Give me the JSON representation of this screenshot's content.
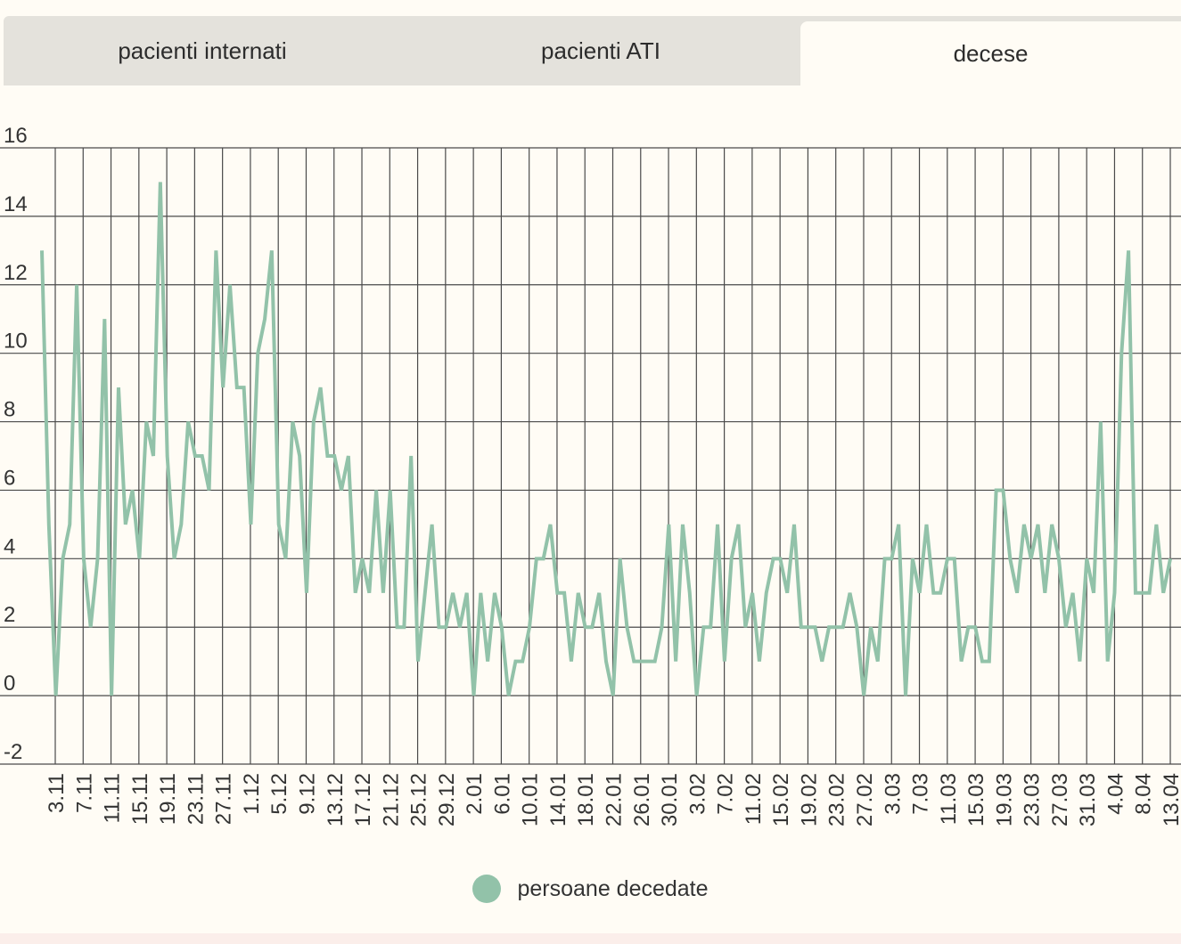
{
  "tabs": [
    {
      "label": "pacienti internati",
      "active": false
    },
    {
      "label": "pacienti ATI",
      "active": false
    },
    {
      "label": "decese",
      "active": true
    }
  ],
  "colors": {
    "series": "#92c2a9",
    "grid": "#4a4a4a",
    "background": "#fffcf5",
    "tabbar": "#e4e2dc"
  },
  "chart_data": {
    "type": "line",
    "ylim": [
      -2,
      16
    ],
    "yticks": [
      16,
      14,
      12,
      10,
      8,
      6,
      4,
      2,
      0,
      -2
    ],
    "grid": true,
    "legend_position": "bottom",
    "x_labels": [
      "3.11",
      "7.11",
      "11.11",
      "15.11",
      "19.11",
      "23.11",
      "27.11",
      "1.12",
      "5.12",
      "9.12",
      "13.12",
      "17.12",
      "21.12",
      "25.12",
      "29.12",
      "2.01",
      "6.01",
      "10.01",
      "14.01",
      "18.01",
      "22.01",
      "26.01",
      "30.01",
      "3.02",
      "7.02",
      "11.02",
      "15.02",
      "19.02",
      "23.02",
      "27.02",
      "3.03",
      "7.03",
      "11.03",
      "15.03",
      "19.03",
      "23.03",
      "27.03",
      "31.03",
      "4.04",
      "8.04",
      "13.04"
    ],
    "series": [
      {
        "name": "persoane decedate",
        "values": [
          13,
          5,
          0,
          4,
          5,
          12,
          4,
          2,
          4,
          11,
          0,
          9,
          5,
          6,
          4,
          8,
          7,
          15,
          7,
          4,
          5,
          8,
          7,
          7,
          6,
          13,
          9,
          12,
          9,
          9,
          5,
          10,
          11,
          13,
          5,
          4,
          8,
          7,
          3,
          8,
          9,
          7,
          7,
          6,
          7,
          3,
          4,
          3,
          6,
          3,
          6,
          2,
          2,
          7,
          1,
          3,
          5,
          2,
          2,
          3,
          2,
          3,
          0,
          3,
          1,
          3,
          2,
          0,
          1,
          1,
          2,
          4,
          4,
          5,
          3,
          3,
          1,
          3,
          2,
          2,
          3,
          1,
          0,
          4,
          2,
          1,
          1,
          1,
          1,
          2,
          5,
          1,
          5,
          3,
          0,
          2,
          2,
          5,
          1,
          4,
          5,
          2,
          3,
          1,
          3,
          4,
          4,
          3,
          5,
          2,
          2,
          2,
          1,
          2,
          2,
          2,
          3,
          2,
          0,
          2,
          1,
          4,
          4,
          5,
          0,
          4,
          3,
          5,
          3,
          3,
          4,
          4,
          1,
          2,
          2,
          1,
          1,
          6,
          6,
          4,
          3,
          5,
          4,
          5,
          3,
          5,
          4,
          2,
          3,
          1,
          4,
          3,
          8,
          1,
          3,
          10,
          13,
          3,
          3,
          3,
          5,
          3,
          4
        ]
      }
    ]
  }
}
